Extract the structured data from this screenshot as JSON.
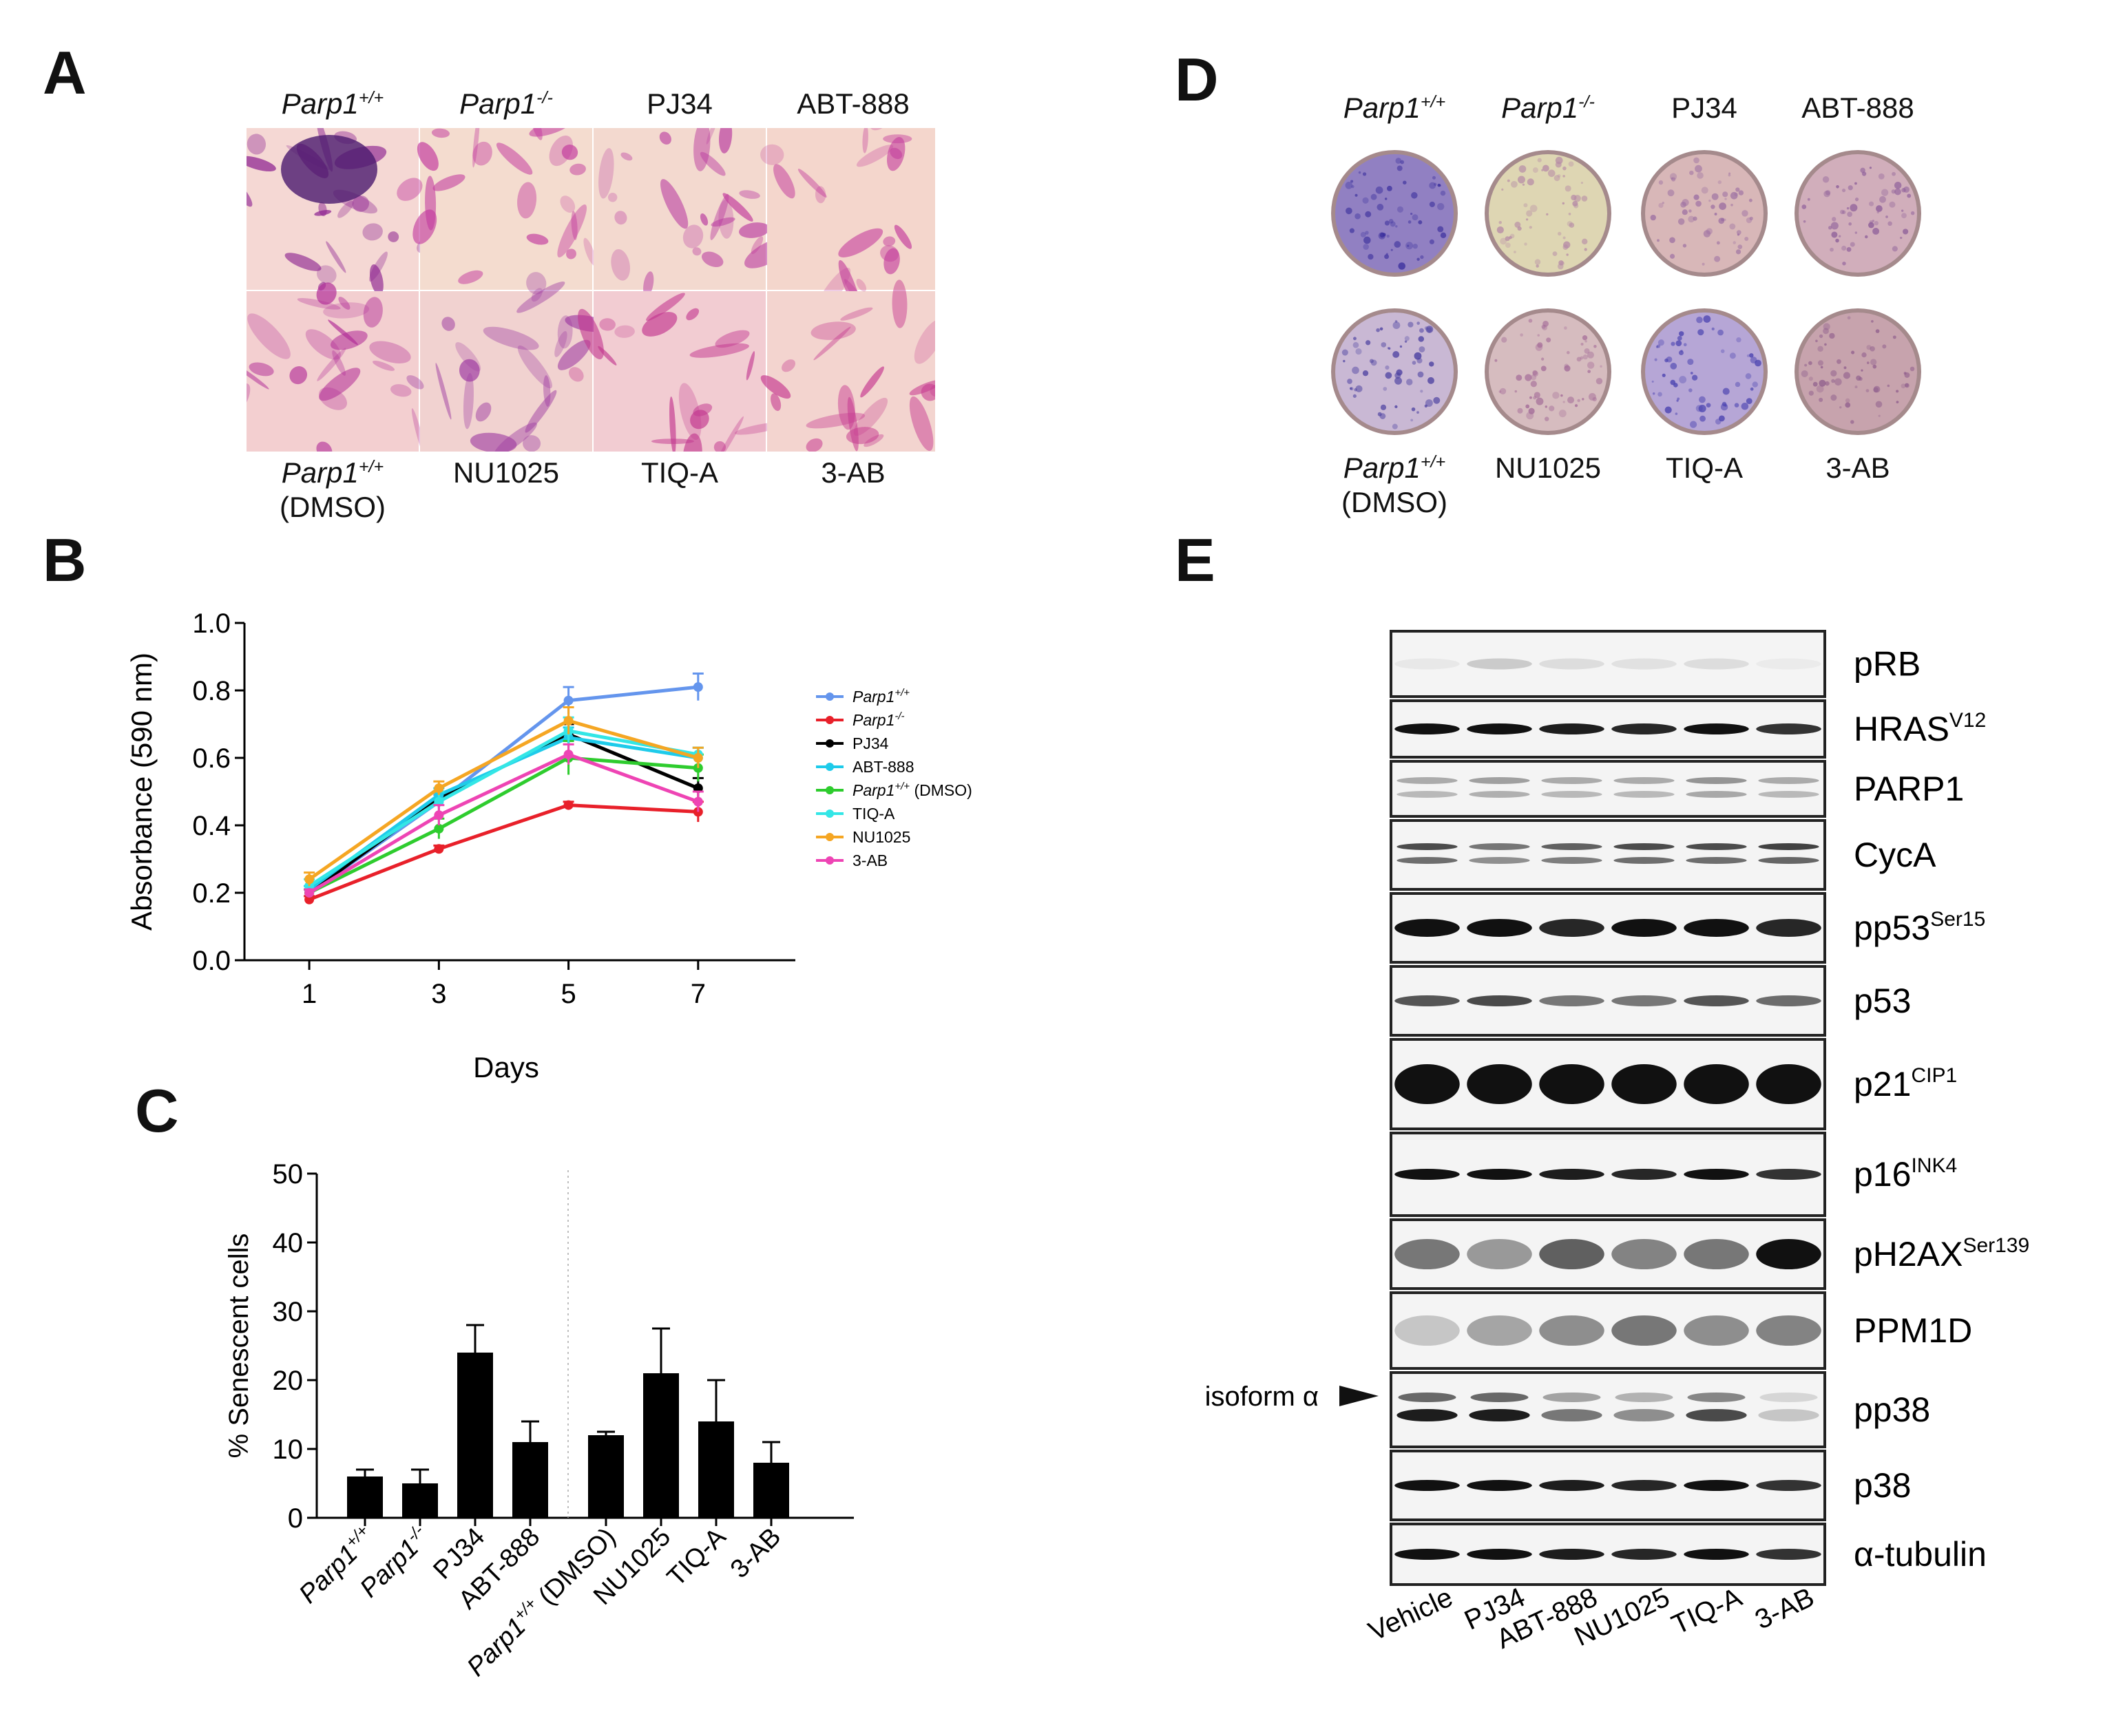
{
  "panels": {
    "a": "A",
    "b": "B",
    "c": "C",
    "d": "D",
    "e": "E"
  },
  "panel_a": {
    "top_labels": [
      {
        "base": "Parp1",
        "sup": "+/+",
        "italic": true
      },
      {
        "base": "Parp1",
        "sup": "-/-",
        "italic": true
      },
      {
        "base": "PJ34",
        "sup": "",
        "italic": false
      },
      {
        "base": "ABT-888",
        "sup": "",
        "italic": false
      }
    ],
    "bottom_labels": [
      {
        "base": "Parp1",
        "sup": "+/+",
        "italic": true,
        "line2": "(DMSO)"
      },
      {
        "base": "NU1025",
        "sup": "",
        "italic": false,
        "line2": ""
      },
      {
        "base": "TIQ-A",
        "sup": "",
        "italic": false,
        "line2": ""
      },
      {
        "base": "3-AB",
        "sup": "",
        "italic": false,
        "line2": ""
      }
    ]
  },
  "panel_d": {
    "top_labels": [
      {
        "base": "Parp1",
        "sup": "+/+",
        "italic": true
      },
      {
        "base": "Parp1",
        "sup": "-/-",
        "italic": true
      },
      {
        "base": "PJ34",
        "sup": "",
        "italic": false
      },
      {
        "base": "ABT-888",
        "sup": "",
        "italic": false
      }
    ],
    "bottom_labels": [
      {
        "base": "Parp1",
        "sup": "+/+",
        "italic": true,
        "line2": "(DMSO)"
      },
      {
        "base": "NU1025",
        "sup": "",
        "italic": false,
        "line2": ""
      },
      {
        "base": "TIQ-A",
        "sup": "",
        "italic": false,
        "line2": ""
      },
      {
        "base": "3-AB",
        "sup": "",
        "italic": false,
        "line2": ""
      }
    ]
  },
  "panel_e": {
    "bands": [
      {
        "base": "pRB",
        "sup": ""
      },
      {
        "base": "HRAS",
        "sup": "V12"
      },
      {
        "base": "PARP1",
        "sup": ""
      },
      {
        "base": "CycA",
        "sup": ""
      },
      {
        "base": "pp53",
        "sup": "Ser15"
      },
      {
        "base": "p53",
        "sup": ""
      },
      {
        "base": "p21",
        "sup": "CIP1"
      },
      {
        "base": "p16",
        "sup": "INK4"
      },
      {
        "base": "pH2AX",
        "sup": "Ser139"
      },
      {
        "base": "PPM1D",
        "sup": ""
      },
      {
        "base": "pp38",
        "sup": ""
      },
      {
        "base": "p38",
        "sup": ""
      },
      {
        "base": "α-tubulin",
        "sup": ""
      }
    ],
    "lanes": [
      "Vehicle",
      "PJ34",
      "ABT-888",
      "NU1025",
      "TIQ-A",
      "3-AB"
    ],
    "isoform_label": "isoform α"
  },
  "chart_data": [
    {
      "panel": "B",
      "type": "line",
      "xlabel": "Days",
      "ylabel": "Absorbance (590 nm)",
      "x": [
        1,
        3,
        5,
        7
      ],
      "xlim": [
        0,
        8.5
      ],
      "ylim": [
        0,
        1.0
      ],
      "yticks": [
        "0.0",
        "0.2",
        "0.4",
        "0.6",
        "0.8",
        "1.0"
      ],
      "xticks": [
        "1",
        "3",
        "5",
        "7"
      ],
      "legend_position": "right",
      "series": [
        {
          "name": "Parp1",
          "sup": "+/+",
          "suffix": "",
          "italic": true,
          "color": "#6495ED",
          "values": [
            0.2,
            0.47,
            0.77,
            0.81
          ],
          "err": [
            0.01,
            0.02,
            0.04,
            0.04
          ]
        },
        {
          "name": "Parp1",
          "sup": "-/-",
          "suffix": "",
          "italic": true,
          "color": "#E8202A",
          "values": [
            0.18,
            0.33,
            0.46,
            0.44
          ],
          "err": [
            0.01,
            0.01,
            0.01,
            0.03
          ]
        },
        {
          "name": "PJ34",
          "sup": "",
          "suffix": "",
          "italic": false,
          "color": "#000000",
          "values": [
            0.2,
            0.48,
            0.67,
            0.51
          ],
          "err": [
            0.01,
            0.02,
            0.03,
            0.03
          ]
        },
        {
          "name": "ABT-888",
          "sup": "",
          "suffix": "",
          "italic": false,
          "color": "#1ECBEA",
          "values": [
            0.21,
            0.49,
            0.66,
            0.6
          ],
          "err": [
            0.01,
            0.02,
            0.03,
            0.03
          ]
        },
        {
          "name": "Parp1",
          "sup": "+/+",
          "suffix": " (DMSO)",
          "italic": true,
          "color": "#2ECC2E",
          "values": [
            0.2,
            0.39,
            0.6,
            0.57
          ],
          "err": [
            0.01,
            0.03,
            0.05,
            0.04
          ]
        },
        {
          "name": "TIQ-A",
          "sup": "",
          "suffix": "",
          "italic": false,
          "color": "#33E6E6",
          "values": [
            0.22,
            0.47,
            0.68,
            0.61
          ],
          "err": [
            0.02,
            0.03,
            0.04,
            0.02
          ]
        },
        {
          "name": "NU1025",
          "sup": "",
          "suffix": "",
          "italic": false,
          "color": "#F5A623",
          "values": [
            0.24,
            0.51,
            0.71,
            0.6
          ],
          "err": [
            0.02,
            0.02,
            0.04,
            0.03
          ]
        },
        {
          "name": "3-AB",
          "sup": "",
          "suffix": "",
          "italic": false,
          "color": "#EE44B4",
          "values": [
            0.2,
            0.43,
            0.61,
            0.47
          ],
          "err": [
            0.01,
            0.03,
            0.03,
            0.03
          ]
        }
      ]
    },
    {
      "panel": "C",
      "type": "bar",
      "ylabel": "% Senescent cells",
      "ylim": [
        0,
        50
      ],
      "yticks": [
        "0",
        "10",
        "20",
        "30",
        "40",
        "50"
      ],
      "categories": [
        {
          "base": "Parp1",
          "sup": "+/+",
          "suffix": "",
          "italic": true
        },
        {
          "base": "Parp1",
          "sup": "-/-",
          "suffix": "",
          "italic": true
        },
        {
          "base": "PJ34",
          "sup": "",
          "suffix": "",
          "italic": false
        },
        {
          "base": "ABT-888",
          "sup": "",
          "suffix": "",
          "italic": false
        },
        {
          "base": "Parp1",
          "sup": "+/+",
          "suffix": " (DMSO)",
          "italic": true
        },
        {
          "base": "NU1025",
          "sup": "",
          "suffix": "",
          "italic": false
        },
        {
          "base": "TIQ-A",
          "sup": "",
          "suffix": "",
          "italic": false
        },
        {
          "base": "3-AB",
          "sup": "",
          "suffix": "",
          "italic": false
        }
      ],
      "values": [
        6,
        5,
        24,
        11,
        12,
        21,
        14,
        8
      ],
      "err": [
        1,
        2,
        4,
        3,
        0.5,
        6.5,
        6,
        3
      ],
      "color": "#000000",
      "divider_after_index": 3
    }
  ]
}
